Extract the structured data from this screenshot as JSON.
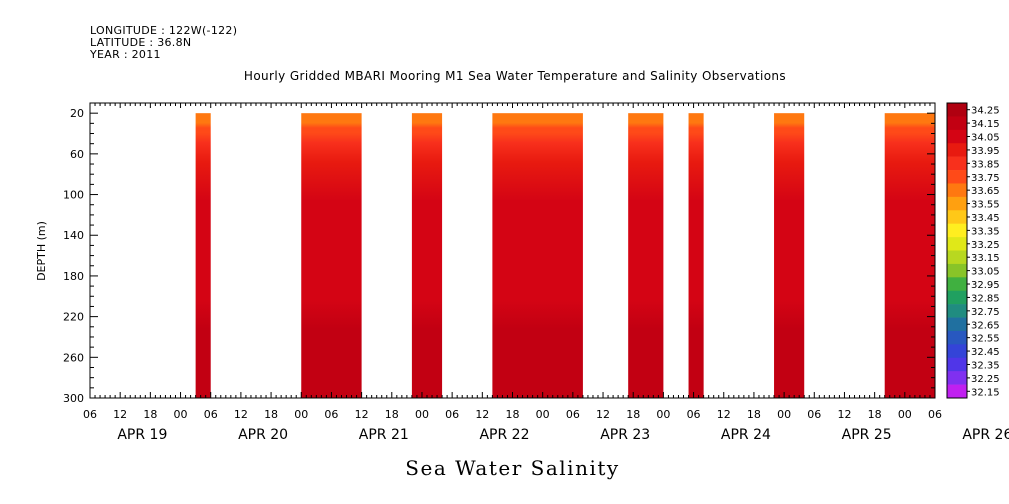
{
  "header": {
    "longitude": "LONGITUDE : 122W(-122)",
    "latitude": "LATITUDE : 36.8N",
    "year": "YEAR : 2011"
  },
  "chart_data": {
    "type": "heatmap",
    "title": "Hourly Gridded MBARI Mooring M1 Sea Water Temperature and Salinity Observations",
    "xlabel": "Sea Water Salinity",
    "ylabel": "DEPTH (m)",
    "ylim": [
      300,
      10
    ],
    "y_ticks": [
      20,
      60,
      100,
      140,
      180,
      220,
      260,
      300
    ],
    "x_range_hours": [
      0,
      168
    ],
    "x_hour_ticks": [
      "06",
      "12",
      "18",
      "00",
      "06",
      "12",
      "18",
      "00",
      "06",
      "12",
      "18",
      "00",
      "06",
      "12",
      "18",
      "00",
      "06",
      "12",
      "18",
      "00",
      "06",
      "12",
      "18",
      "00",
      "06",
      "12",
      "18",
      "00",
      "06"
    ],
    "day_labels": [
      "APR 19",
      "APR 20",
      "APR 21",
      "APR 22",
      "APR 23",
      "APR 24",
      "APR 25",
      "APR 26"
    ],
    "colorbar_levels": [
      "34.25",
      "34.15",
      "34.05",
      "33.95",
      "33.85",
      "33.75",
      "33.65",
      "33.55",
      "33.45",
      "33.35",
      "33.25",
      "33.15",
      "33.05",
      "32.95",
      "32.85",
      "32.75",
      "32.65",
      "32.55",
      "32.45",
      "32.35",
      "32.25",
      "32.15"
    ],
    "colorbar_colors": [
      "#b00010",
      "#c20012",
      "#d40414",
      "#e81a10",
      "#f8301c",
      "#ff4a18",
      "#ff7810",
      "#ffa010",
      "#ffc818",
      "#ffee20",
      "#e0e818",
      "#b8d820",
      "#88c428",
      "#40b040",
      "#20a060",
      "#208c80",
      "#2070a0",
      "#2858c0",
      "#3444d8",
      "#5036e8",
      "#8030f0",
      "#c020f0"
    ],
    "observation_windows": [
      {
        "start_hour": 21,
        "end_hour": 24
      },
      {
        "start_hour": 42,
        "end_hour": 54
      },
      {
        "start_hour": 64,
        "end_hour": 70
      },
      {
        "start_hour": 80,
        "end_hour": 98
      },
      {
        "start_hour": 107,
        "end_hour": 114
      },
      {
        "start_hour": 119,
        "end_hour": 122
      },
      {
        "start_hour": 136,
        "end_hour": 142
      },
      {
        "start_hour": 158,
        "end_hour": 168
      }
    ],
    "salinity_profile": [
      {
        "depth": 20,
        "value": 33.6
      },
      {
        "depth": 25,
        "value": 33.7
      },
      {
        "depth": 30,
        "value": 33.8
      },
      {
        "depth": 40,
        "value": 33.9
      },
      {
        "depth": 60,
        "value": 33.95
      },
      {
        "depth": 100,
        "value": 34.0
      },
      {
        "depth": 140,
        "value": 34.05
      },
      {
        "depth": 200,
        "value": 34.08
      },
      {
        "depth": 230,
        "value": 34.12
      },
      {
        "depth": 260,
        "value": 34.18
      },
      {
        "depth": 300,
        "value": 34.16
      }
    ]
  }
}
